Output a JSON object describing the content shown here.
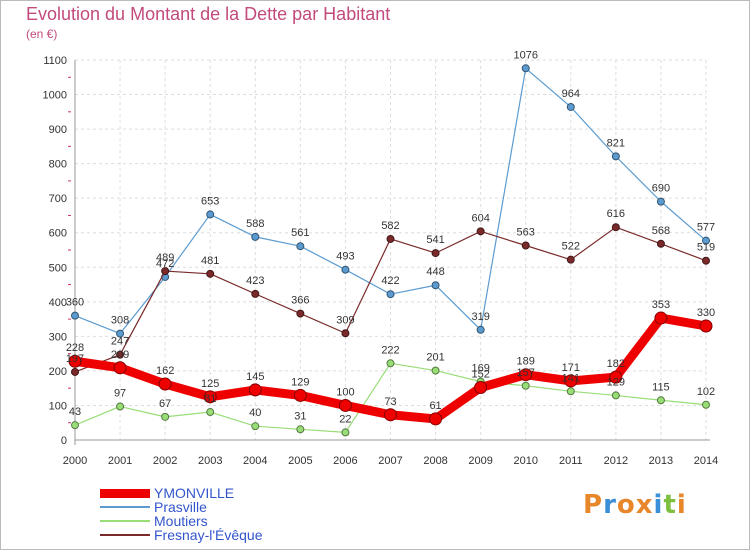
{
  "title": "Evolution du Montant de la Dette par Habitant",
  "subtitle": "(en €)",
  "logo": {
    "text": "Proxiti",
    "colors": [
      "#e8862a",
      "#3a8fd6",
      "#e8862a",
      "#e8862a",
      "#3a8fd6",
      "#7fbf3f",
      "#e8862a"
    ]
  },
  "chart_data": {
    "type": "line",
    "x": [
      "2000",
      "2001",
      "2002",
      "2003",
      "2004",
      "2005",
      "2006",
      "2007",
      "2008",
      "2009",
      "2010",
      "2011",
      "2012",
      "2013",
      "2014"
    ],
    "ylim": [
      0,
      1100
    ],
    "yticks": [
      0,
      100,
      200,
      300,
      400,
      500,
      600,
      700,
      800,
      900,
      1000,
      1100
    ],
    "grid": true,
    "legend_position": "bottom-left",
    "series": [
      {
        "name": "YMONVILLE",
        "color": "#ee0000",
        "values": [
          228,
          209,
          162,
          125,
          145,
          129,
          100,
          73,
          61,
          152,
          189,
          171,
          182,
          353,
          330
        ]
      },
      {
        "name": "Prasville",
        "color": "#5b9bd0",
        "values": [
          360,
          308,
          472,
          653,
          588,
          561,
          493,
          422,
          448,
          319,
          1076,
          964,
          821,
          690,
          577
        ]
      },
      {
        "name": "Moutiers",
        "color": "#99dd77",
        "values": [
          43,
          97,
          67,
          81,
          40,
          31,
          22,
          222,
          201,
          169,
          157,
          141,
          129,
          115,
          102
        ]
      },
      {
        "name": "Fresnay-l'Évêque",
        "color": "#7a2a2a",
        "values": [
          197,
          247,
          489,
          481,
          423,
          366,
          309,
          582,
          541,
          604,
          563,
          522,
          616,
          568,
          519
        ]
      }
    ]
  }
}
